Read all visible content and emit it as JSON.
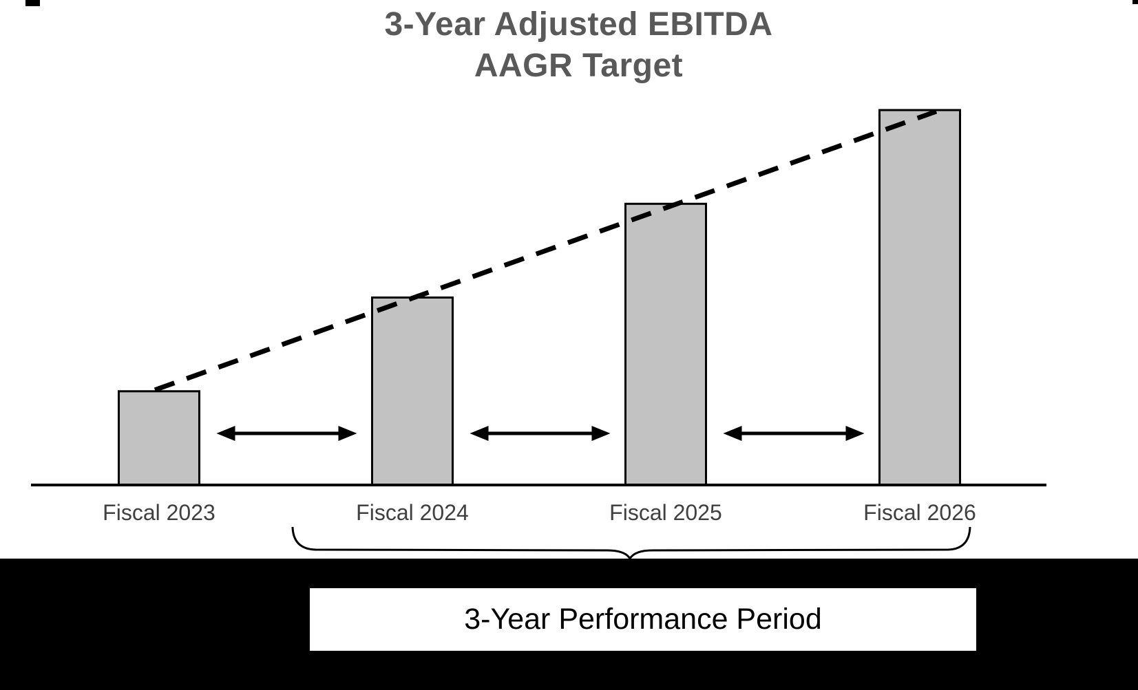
{
  "chart_data": {
    "type": "bar",
    "title": "3-Year Adjusted EBITDA AAGR Target",
    "title_lines": [
      "3-Year Adjusted EBITDA",
      "AAGR Target"
    ],
    "categories": [
      "Fiscal 2023",
      "Fiscal 2024",
      "Fiscal 2025",
      "Fiscal 2026"
    ],
    "series": [
      {
        "name": "Adjusted EBITDA target (relative height, no axis values shown)",
        "values": [
          1,
          2,
          3,
          4
        ]
      }
    ],
    "xlabel": "",
    "ylabel": "",
    "ylim": [
      0,
      4.15
    ],
    "grid": false,
    "legend": false,
    "bar_color": "#c2c2c2",
    "bar_border_color": "#000000",
    "trendline": {
      "style": "dashed",
      "color": "#000000",
      "description": "Dashed AAGR growth line from top of Fiscal 2023 bar to top of Fiscal 2026 bar"
    },
    "year_gap_arrows": {
      "count": 3,
      "color": "#000000",
      "description": "Double-headed arrows between each pair of adjacent fiscal-year bars"
    }
  },
  "footer": {
    "label": "3-Year Performance Period",
    "band_color": "#000000",
    "label_box_color": "#ffffff",
    "label_text_color": "#000000",
    "brace": "curly brace spanning Fiscal 2024 through Fiscal 2026"
  },
  "colors": {
    "background": "#ffffff",
    "title": "#595959",
    "axis_label": "#404040",
    "baseline": "#000000"
  }
}
